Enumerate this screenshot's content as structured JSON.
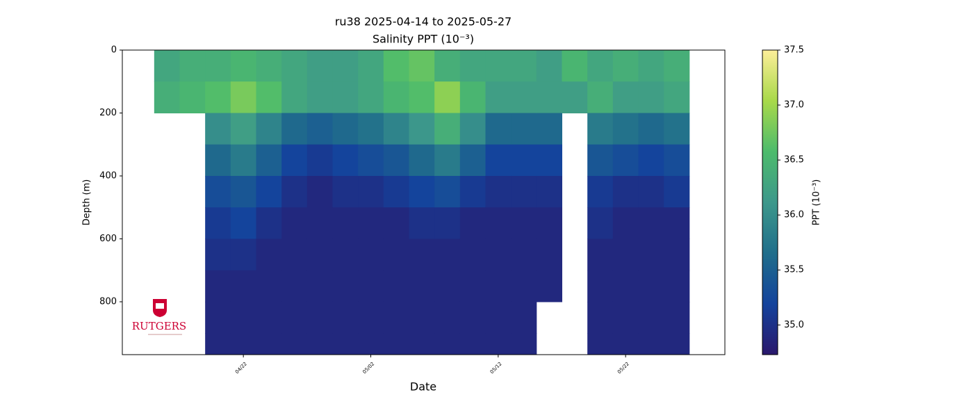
{
  "chart_data": {
    "type": "heatmap",
    "title": "ru38 2025-04-14 to 2025-05-27",
    "subtitle": "Salinity PPT (10⁻³)",
    "x_label": "Date",
    "y_label": "Depth (m)",
    "colorbar_label": "PPT (10⁻³)",
    "logo_text": "RUTGERS",
    "x": [
      "2025-04-16",
      "2025-04-18",
      "2025-04-20",
      "2025-04-22",
      "2025-04-24",
      "2025-04-26",
      "2025-04-28",
      "2025-04-30",
      "2025-05-02",
      "2025-05-04",
      "2025-05-06",
      "2025-05-08",
      "2025-05-10",
      "2025-05-12",
      "2025-05-14",
      "2025-05-16",
      "2025-05-18",
      "2025-05-20",
      "2025-05-22",
      "2025-05-24",
      "2025-05-26"
    ],
    "y": [
      50,
      150,
      250,
      350,
      450,
      550,
      650,
      750,
      850,
      950
    ],
    "z": [
      [
        36.3,
        36.4,
        null,
        null,
        null,
        null,
        null,
        null,
        null,
        null
      ],
      [
        36.4,
        36.5,
        null,
        null,
        null,
        null,
        null,
        null,
        null,
        null
      ],
      [
        36.4,
        36.6,
        36.0,
        35.6,
        35.3,
        35.1,
        35.0,
        34.9,
        34.9,
        34.9
      ],
      [
        36.5,
        36.8,
        36.2,
        35.8,
        35.4,
        35.2,
        35.0,
        34.9,
        34.9,
        34.9
      ],
      [
        36.4,
        36.6,
        35.9,
        35.5,
        35.2,
        35.0,
        34.9,
        34.9,
        34.9,
        34.9
      ],
      [
        36.3,
        36.3,
        35.6,
        35.2,
        35.0,
        34.9,
        34.9,
        34.9,
        34.9,
        34.9
      ],
      [
        36.2,
        36.2,
        35.5,
        35.1,
        34.9,
        34.9,
        34.9,
        34.9,
        34.9,
        34.9
      ],
      [
        36.2,
        36.2,
        35.6,
        35.2,
        35.0,
        34.9,
        34.9,
        34.9,
        34.9,
        34.9
      ],
      [
        36.3,
        36.3,
        35.7,
        35.3,
        35.0,
        34.9,
        34.9,
        34.9,
        34.9,
        34.9
      ],
      [
        36.6,
        36.5,
        35.9,
        35.4,
        35.1,
        34.9,
        34.9,
        34.9,
        34.9,
        34.9
      ],
      [
        36.7,
        36.6,
        36.1,
        35.6,
        35.2,
        35.0,
        34.9,
        34.9,
        34.9,
        34.9
      ],
      [
        36.4,
        36.9,
        36.4,
        35.8,
        35.3,
        35.0,
        34.9,
        34.9,
        34.9,
        34.9
      ],
      [
        36.3,
        36.5,
        36.0,
        35.5,
        35.1,
        34.9,
        34.9,
        34.9,
        34.9,
        34.9
      ],
      [
        36.3,
        36.2,
        35.6,
        35.2,
        35.0,
        34.9,
        34.9,
        34.9,
        34.9,
        34.9
      ],
      [
        36.3,
        36.2,
        35.6,
        35.2,
        35.0,
        34.9,
        34.9,
        34.9,
        34.9,
        34.9
      ],
      [
        36.2,
        36.2,
        35.6,
        35.2,
        35.0,
        34.9,
        34.9,
        34.9,
        null,
        null
      ],
      [
        36.5,
        36.2,
        null,
        null,
        null,
        null,
        null,
        null,
        null,
        null
      ],
      [
        36.3,
        36.4,
        35.8,
        35.4,
        35.1,
        35.0,
        34.9,
        34.9,
        34.9,
        34.9
      ],
      [
        36.4,
        36.2,
        35.7,
        35.3,
        35.0,
        34.9,
        34.9,
        34.9,
        34.9,
        34.9
      ],
      [
        36.3,
        36.2,
        35.6,
        35.2,
        35.0,
        34.9,
        34.9,
        34.9,
        34.9,
        34.9
      ],
      [
        36.4,
        36.3,
        35.7,
        35.3,
        35.1,
        34.9,
        34.9,
        34.9,
        34.9,
        34.9
      ]
    ],
    "xlim": [
      "2025-04-12T12:00",
      "2025-05-29T19:00"
    ],
    "xticks": [
      {
        "value": "2025-04-22",
        "label": "04/22"
      },
      {
        "value": "2025-05-02",
        "label": "05/02"
      },
      {
        "value": "2025-05-12",
        "label": "05/12"
      },
      {
        "value": "2025-05-22",
        "label": "05/22"
      }
    ],
    "ylim": [
      0,
      968
    ],
    "y_inverted": true,
    "yticks": [
      0,
      200,
      400,
      600,
      800
    ],
    "clim": [
      34.73,
      37.5
    ],
    "cticks": [
      {
        "value": 35,
        "label": "35.0"
      },
      {
        "value": 35.5,
        "label": "35.5"
      },
      {
        "value": 36,
        "label": "36.0"
      },
      {
        "value": 36.5,
        "label": "36.5"
      },
      {
        "value": 37,
        "label": "37.0"
      },
      {
        "value": 37.5,
        "label": "37.5"
      }
    ],
    "colormap": [
      "#2a186c",
      "#14439c",
      "#206e8b",
      "#3d988b",
      "#4dbb6c",
      "#a8d94a",
      "#fdee99"
    ]
  }
}
